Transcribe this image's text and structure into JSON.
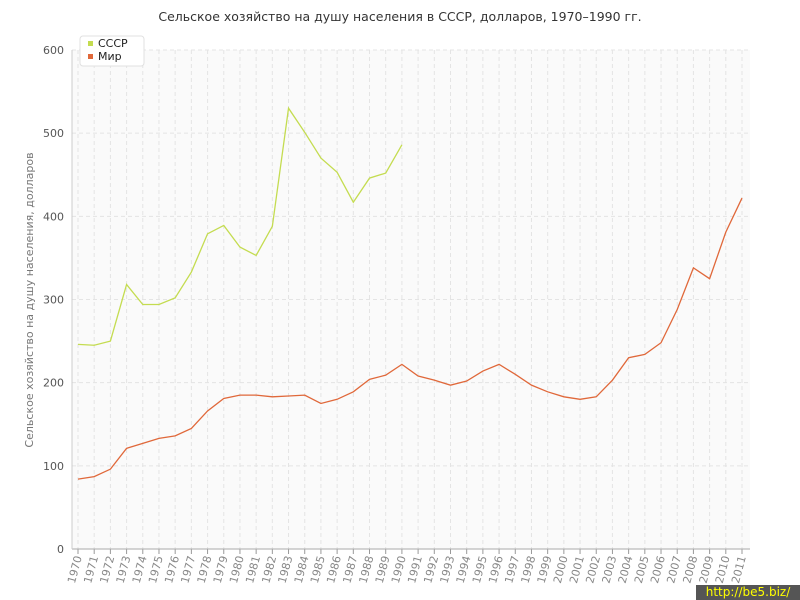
{
  "chart_data": {
    "type": "line",
    "title": "Сельское хозяйство на душу населения в СССР, долларов, 1970–1990 гг.",
    "y_label": "Сельское хозяйство на душу населения, долларов",
    "x": [
      1970,
      1971,
      1972,
      1973,
      1974,
      1975,
      1976,
      1977,
      1978,
      1979,
      1980,
      1981,
      1982,
      1983,
      1984,
      1985,
      1986,
      1987,
      1988,
      1989,
      1990,
      1991,
      1992,
      1993,
      1994,
      1995,
      1996,
      1997,
      1998,
      1999,
      2000,
      2001,
      2002,
      2003,
      2004,
      2005,
      2006,
      2007,
      2008,
      2009,
      2010,
      2011
    ],
    "series": [
      {
        "name": "СССР",
        "color": "#c4dc50",
        "values": [
          246,
          245,
          250,
          318,
          294,
          294,
          302,
          333,
          379,
          389,
          363,
          353,
          388,
          530,
          501,
          470,
          453,
          417,
          446,
          452,
          486,
          null,
          null,
          null,
          null,
          null,
          null,
          null,
          null,
          null,
          null,
          null,
          null,
          null,
          null,
          null,
          null,
          null,
          null,
          null,
          null,
          null
        ]
      },
      {
        "name": "Мир",
        "color": "#e0683a",
        "values": [
          84,
          87,
          96,
          121,
          127,
          133,
          136,
          145,
          166,
          181,
          185,
          185,
          183,
          184,
          185,
          175,
          180,
          189,
          204,
          209,
          222,
          208,
          203,
          197,
          202,
          214,
          222,
          210,
          197,
          189,
          183,
          180,
          183,
          203,
          230,
          234,
          248,
          288,
          338,
          325,
          381,
          422
        ]
      }
    ],
    "ylim": [
      0,
      600
    ],
    "yticks": [
      0,
      100,
      200,
      300,
      400,
      500,
      600
    ],
    "grid": true,
    "legend": "top-left",
    "watermark": "http://be5.biz/"
  }
}
